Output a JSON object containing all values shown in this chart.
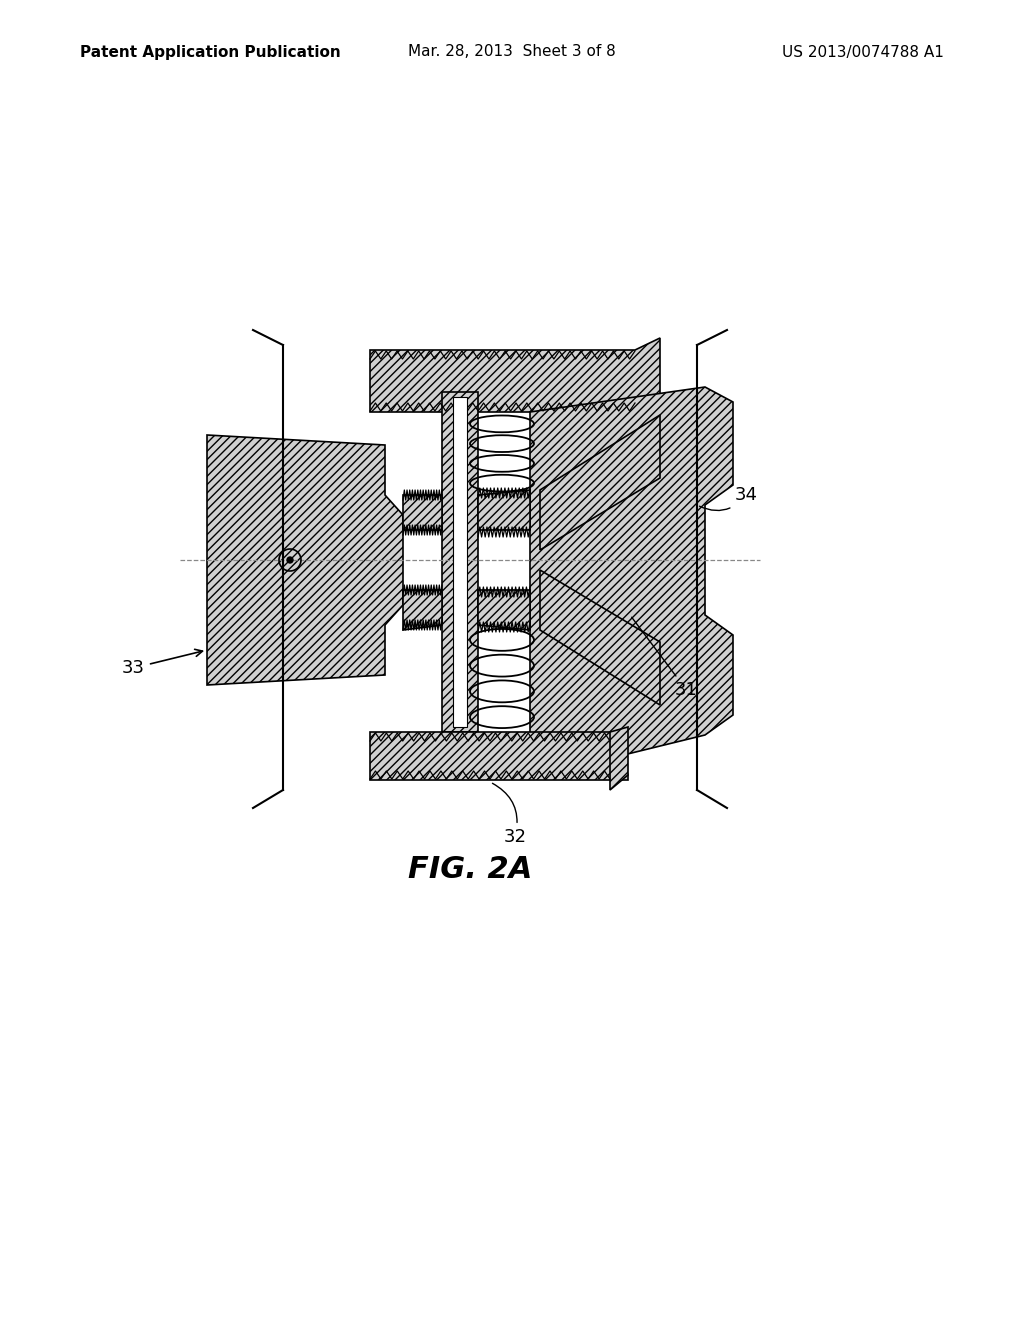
{
  "background_color": "#ffffff",
  "header_left": "Patent Application Publication",
  "header_center": "Mar. 28, 2013  Sheet 3 of 8",
  "header_right": "US 2013/0074788 A1",
  "caption": "FIG. 2A",
  "label_fontsize": 13,
  "header_fontsize": 11,
  "caption_fontsize": 22,
  "line_color": "#000000",
  "line_width": 1.2,
  "hatch_gray": "#d0d0d0"
}
